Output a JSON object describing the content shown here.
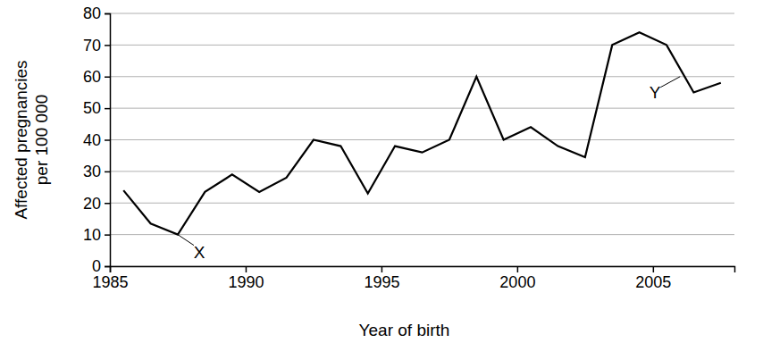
{
  "chart_data": {
    "type": "line",
    "x_label": "Year of birth",
    "y_label": [
      "Affected pregnancies",
      "per 100 000"
    ],
    "x": [
      1985.5,
      1986.5,
      1987.5,
      1988.5,
      1989.5,
      1990.5,
      1991.5,
      1992.5,
      1993.5,
      1994.5,
      1995.5,
      1996.5,
      1997.5,
      1998.5,
      1999.5,
      2000.5,
      2001.5,
      2002.5,
      2003.5,
      2004.5,
      2005.5,
      2006.5,
      2007.5
    ],
    "values": [
      24,
      13.5,
      10,
      23.5,
      29,
      23.5,
      28,
      40,
      38,
      23,
      38,
      36,
      40,
      60,
      40,
      44,
      38,
      34.5,
      70,
      74,
      70,
      55,
      58
    ],
    "color": "#000000",
    "xlim": [
      1985,
      2008
    ],
    "xticks": [
      1985,
      1990,
      1995,
      2000,
      2005
    ],
    "ylim": [
      0,
      80
    ],
    "yticks": [
      0,
      10,
      20,
      30,
      40,
      50,
      60,
      70,
      80
    ],
    "grid": true,
    "annotations": [
      {
        "text": "X",
        "x": 1987.5,
        "y": 10
      },
      {
        "text": "Y",
        "x": 2006,
        "y": 60
      }
    ]
  }
}
